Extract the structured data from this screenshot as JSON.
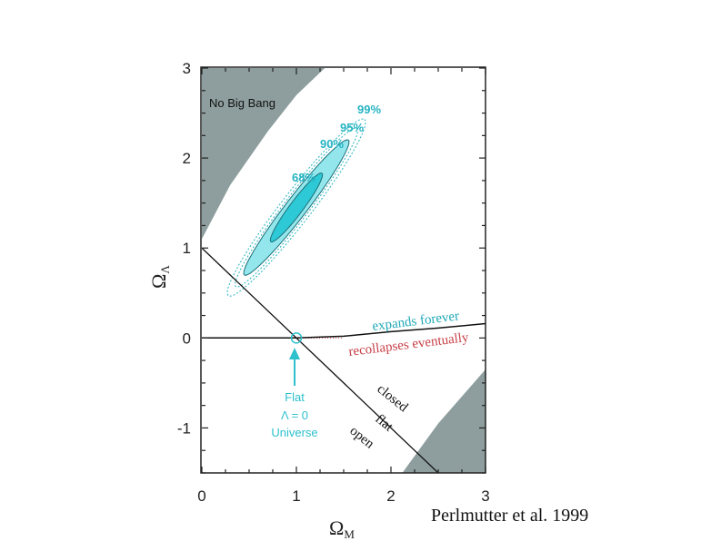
{
  "chart_data": {
    "type": "contour",
    "title": "",
    "xlabel": "Ω",
    "xlabel_sub": "M",
    "ylabel": "Ω",
    "ylabel_sub": "Λ",
    "xlim": [
      0,
      3
    ],
    "ylim": [
      -1.5,
      3
    ],
    "xticks": [
      0,
      1,
      2,
      3
    ],
    "xtick_labels": [
      "0",
      "1",
      "2",
      "3"
    ],
    "yticks": [
      -1,
      0,
      1,
      2,
      3
    ],
    "ytick_labels": [
      "-1",
      "0",
      "1",
      "2",
      "3"
    ],
    "grid": false,
    "confidence_contours": [
      {
        "level": "99%",
        "center": [
          1.0,
          1.45
        ],
        "major_axis_end": [
          1.72,
          2.43
        ],
        "minor_half_width": 0.16,
        "style": "dotted"
      },
      {
        "level": "95%",
        "center": [
          1.0,
          1.45
        ],
        "major_axis_end": [
          1.64,
          2.33
        ],
        "minor_half_width": 0.13,
        "style": "dotted"
      },
      {
        "level": "90%",
        "center": [
          1.0,
          1.45
        ],
        "major_axis_end": [
          1.55,
          2.2
        ],
        "minor_half_width": 0.11,
        "style": "solid"
      },
      {
        "level": "68%",
        "center": [
          1.0,
          1.45
        ],
        "major_axis_end": [
          1.27,
          1.83
        ],
        "minor_half_width": 0.07,
        "style": "solid"
      }
    ],
    "lines": [
      {
        "name": "flat",
        "points": [
          [
            0,
            1
          ],
          [
            2.5,
            -1.5
          ]
        ]
      },
      {
        "name": "expands/recollapses boundary",
        "points": [
          [
            0,
            0
          ],
          [
            1,
            0
          ],
          [
            1.5,
            0.02
          ],
          [
            2,
            0.07
          ],
          [
            2.5,
            0.11
          ],
          [
            3,
            0.16
          ]
        ]
      }
    ],
    "regions": [
      {
        "name": "No Big Bang",
        "boundary": [
          [
            0,
            1.1
          ],
          [
            0.3,
            1.7
          ],
          [
            0.7,
            2.3
          ],
          [
            1.0,
            2.7
          ],
          [
            1.3,
            3.0
          ]
        ]
      },
      {
        "name": "lower-right excluded",
        "boundary": [
          [
            2.12,
            -1.5
          ],
          [
            2.5,
            -0.95
          ],
          [
            3,
            -0.35
          ]
        ]
      }
    ],
    "marker": {
      "x": 1,
      "y": 0,
      "shape": "circle"
    },
    "annotations": {
      "no_big_bang": "No Big Bang",
      "expands": "expands forever",
      "recollapses": "recollapses eventually",
      "closed": "closed",
      "flat": "flat",
      "open": "open",
      "flat_universe_line1": "Flat",
      "flat_universe_line2": "Λ = 0",
      "flat_universe_line3": "Universe"
    },
    "colors": {
      "excluded_region": "#8e9e9e",
      "inner_fill": "#2ec9d6",
      "outer_fill": "#92e6ec",
      "contour_label": "#26b4c2",
      "expands_text": "#22aab8",
      "recollapses_text": "#c8424a",
      "flat_universe_text": "#2ec0cc"
    }
  },
  "credit": "Perlmutter et al. 1999"
}
